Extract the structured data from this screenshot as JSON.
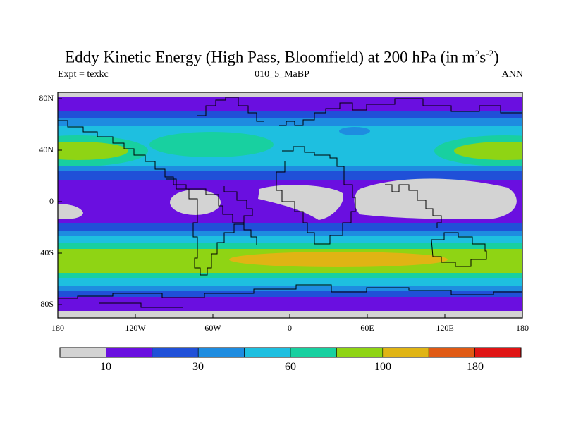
{
  "title": {
    "text": "Eddy Kinetic Energy (High Pass, Bloomfield) at 200 hPa (in m",
    "sup1": "2",
    "mid": "s",
    "sup2": "-2",
    "close": ")"
  },
  "left_label": "Expt = texkc",
  "center_label": "010_5_MaBP",
  "right_label": "ANN",
  "chart_data": {
    "type": "heatmap",
    "x_ticks": [
      "180",
      "120W",
      "60W",
      "0",
      "60E",
      "120E",
      "180"
    ],
    "y_ticks": [
      "80N",
      "40N",
      "0",
      "40S",
      "80S"
    ],
    "xlim": [
      -180,
      180
    ],
    "ylim": [
      -90,
      90
    ],
    "colorbar": {
      "colors": [
        "#d3d3d3",
        "#6a0fe0",
        "#2050d8",
        "#1e8ce0",
        "#1ebfe0",
        "#18d0a0",
        "#8fd414",
        "#e0b414",
        "#e05a14",
        "#e01414"
      ],
      "tick_labels": [
        "10",
        "30",
        "60",
        "100",
        "180"
      ]
    }
  }
}
